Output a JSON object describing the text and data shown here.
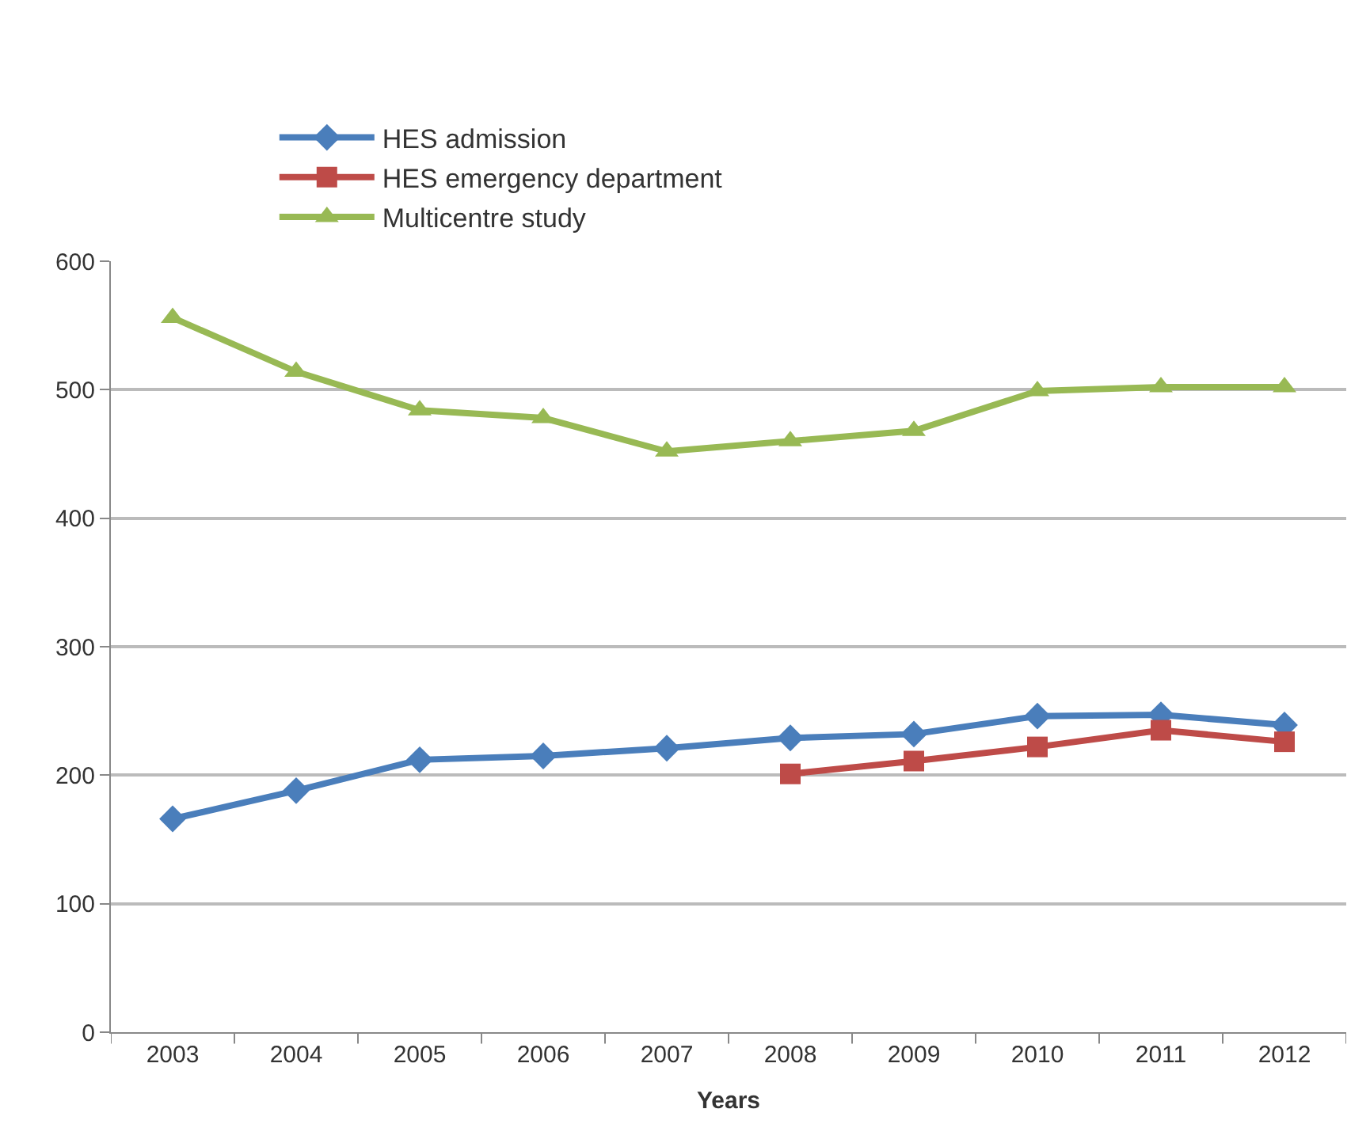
{
  "chart_data": {
    "type": "line",
    "xlabel": "Years",
    "categories": [
      "2003",
      "2004",
      "2005",
      "2006",
      "2007",
      "2008",
      "2009",
      "2010",
      "2011",
      "2012"
    ],
    "series": [
      {
        "name": "HES admission",
        "color": "#4a7ebb",
        "marker": "diamond",
        "values": [
          166,
          188,
          212,
          215,
          221,
          229,
          232,
          246,
          247,
          239
        ]
      },
      {
        "name": "HES emergency department",
        "color": "#be4b48",
        "marker": "square",
        "values": [
          null,
          null,
          null,
          null,
          null,
          201,
          211,
          222,
          235,
          226
        ]
      },
      {
        "name": "Multicentre study",
        "color": "#98b954",
        "marker": "triangle",
        "values": [
          556,
          514,
          484,
          478,
          452,
          460,
          468,
          499,
          502,
          502
        ]
      }
    ],
    "ylim": [
      0,
      600
    ],
    "yticks": [
      0,
      100,
      200,
      300,
      400,
      500,
      600
    ],
    "grid": "y",
    "legend": "top",
    "line_style": "solid"
  }
}
